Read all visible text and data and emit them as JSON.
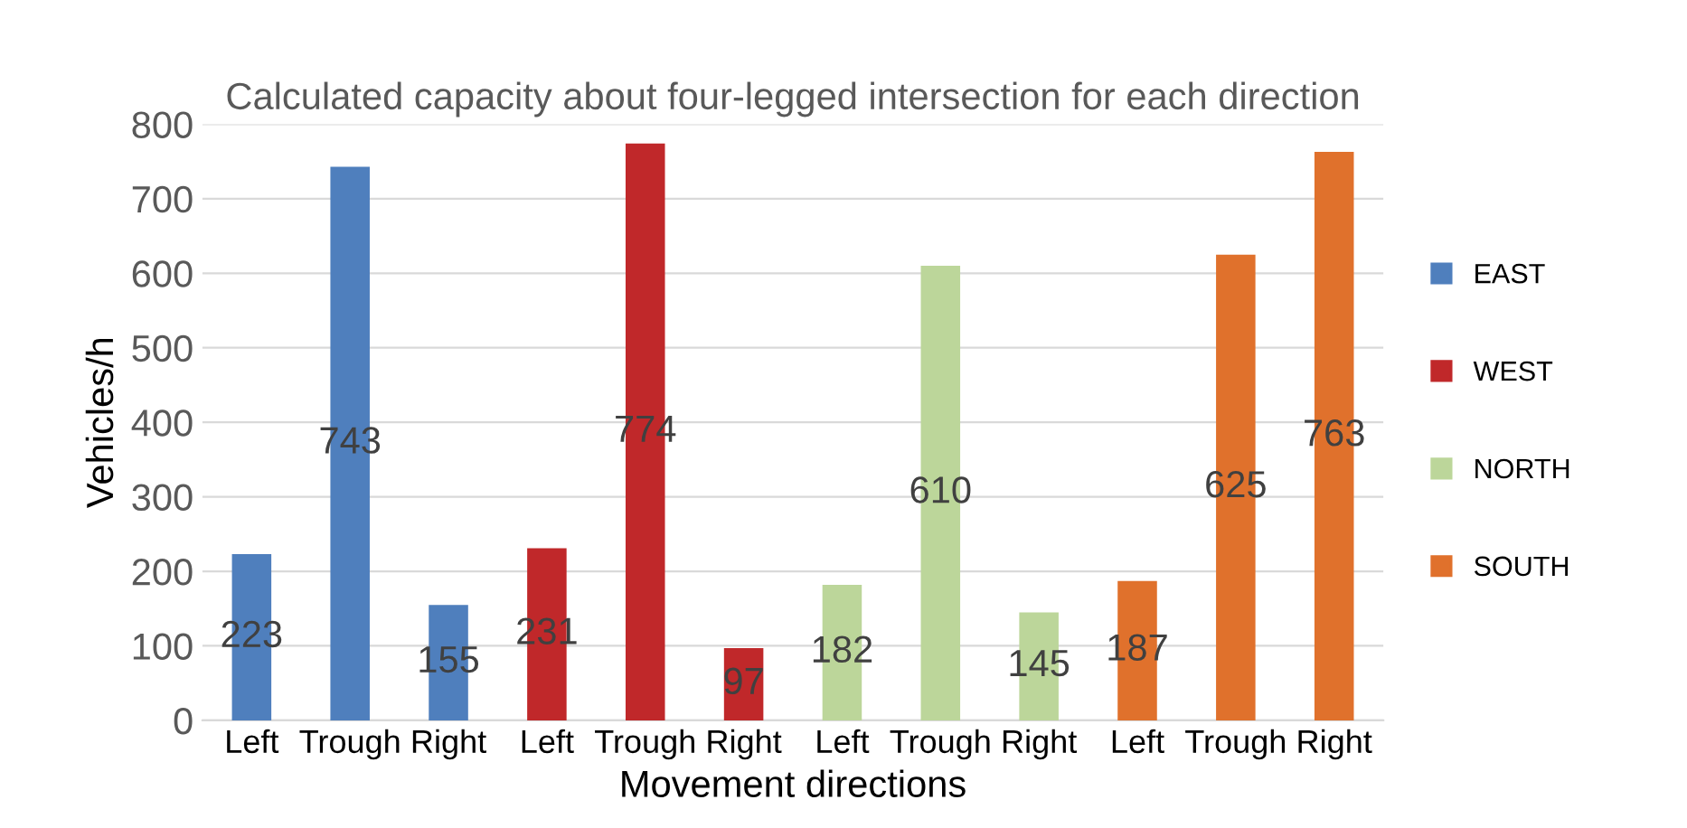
{
  "chart_data": {
    "type": "bar",
    "title": "Calculated capacity about four-legged intersection for each direction",
    "xlabel": "Movement directions",
    "ylabel": "Vehicles/h",
    "categories": [
      "Left",
      "Trough",
      "Right",
      "Left",
      "Trough",
      "Right",
      "Left",
      "Trough",
      "Right",
      "Left",
      "Trough",
      "Right"
    ],
    "series": [
      {
        "name": "EAST",
        "color": "#4f7fbd",
        "values": [
          223,
          743,
          155,
          null,
          null,
          null,
          null,
          null,
          null,
          null,
          null,
          null
        ]
      },
      {
        "name": "WEST",
        "color": "#c0282a",
        "values": [
          null,
          null,
          null,
          231,
          774,
          97,
          null,
          null,
          null,
          null,
          null,
          null
        ]
      },
      {
        "name": "NORTH",
        "color": "#bcd69a",
        "values": [
          null,
          null,
          null,
          null,
          null,
          null,
          182,
          610,
          145,
          null,
          null,
          null
        ]
      },
      {
        "name": "SOUTH",
        "color": "#e0712c",
        "values": [
          null,
          null,
          null,
          null,
          null,
          null,
          null,
          null,
          null,
          187,
          625,
          763
        ]
      }
    ],
    "ylim": [
      0,
      800
    ],
    "yticks": [
      0,
      100,
      200,
      300,
      400,
      500,
      600,
      700,
      800
    ],
    "grid": "y",
    "legend": "right",
    "data_labels": true
  }
}
